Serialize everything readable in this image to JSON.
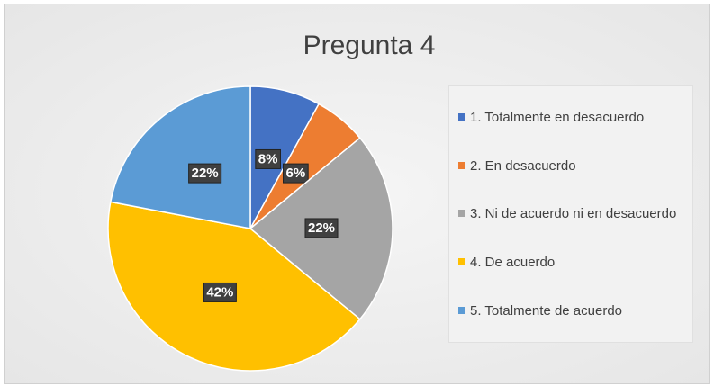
{
  "chart_data": {
    "type": "pie",
    "title": "Pregunta 4",
    "categories": [
      "1. Totalmente en desacuerdo",
      "2. En desacuerdo",
      "3. Ni de acuerdo ni en desacuerdo",
      "4. De acuerdo",
      "5. Totalmente de acuerdo"
    ],
    "values": [
      8,
      6,
      22,
      42,
      22
    ],
    "value_labels": [
      "8%",
      "6%",
      "22%",
      "42%",
      "22%"
    ],
    "colors": [
      "#4472c4",
      "#ed7d31",
      "#a5a5a5",
      "#ffc000",
      "#5b9bd5"
    ],
    "legend": "right"
  }
}
